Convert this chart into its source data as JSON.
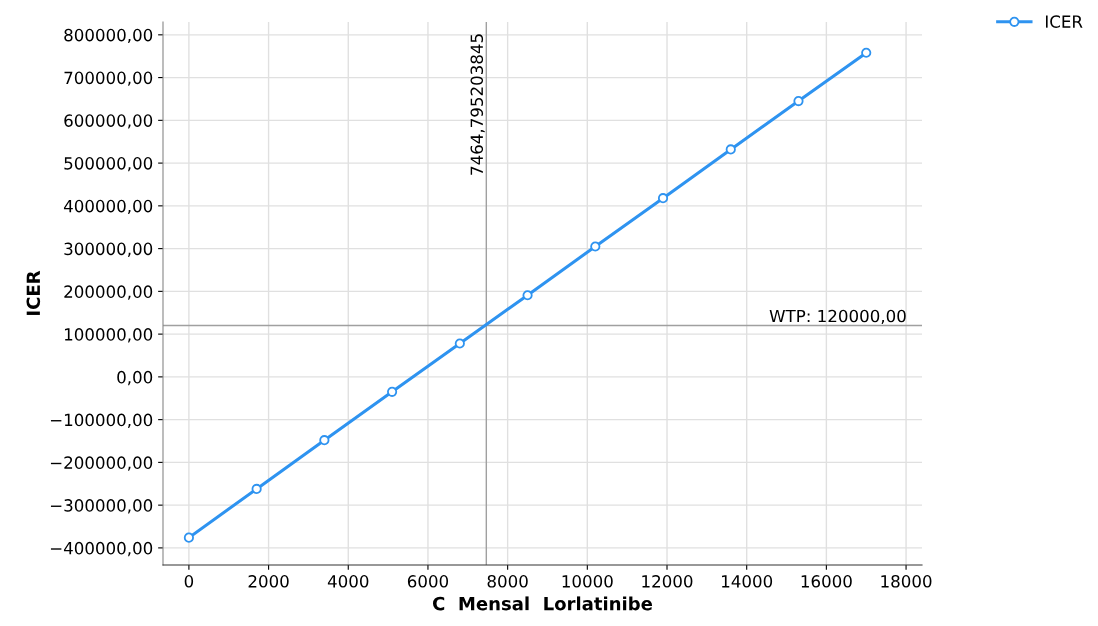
{
  "chart_data": {
    "type": "line",
    "xlabel": "C  Mensal  Lorlatinibe",
    "ylabel": "ICER",
    "x": [
      0,
      1700,
      3400,
      5100,
      6800,
      8500,
      10200,
      11900,
      13600,
      15300,
      17000
    ],
    "series": [
      {
        "name": "ICER",
        "color": "#2e93f0",
        "values": [
          -376000,
          -262000,
          -148000,
          -35000,
          78000,
          191000,
          305000,
          418000,
          532000,
          645000,
          758000
        ]
      }
    ],
    "xlim": [
      -650,
      18400
    ],
    "xticks": [
      0,
      2000,
      4000,
      6000,
      8000,
      10000,
      12000,
      14000,
      16000,
      18000
    ],
    "ylim": [
      -440000,
      830000
    ],
    "yticks": [
      {
        "value": -400000,
        "label": "−400000,00"
      },
      {
        "value": -300000,
        "label": "−300000,00"
      },
      {
        "value": -200000,
        "label": "−200000,00"
      },
      {
        "value": -100000,
        "label": "−100000,00"
      },
      {
        "value": 0,
        "label": "0,00"
      },
      {
        "value": 100000,
        "label": "100000,00"
      },
      {
        "value": 200000,
        "label": "200000,00"
      },
      {
        "value": 300000,
        "label": "300000,00"
      },
      {
        "value": 400000,
        "label": "400000,00"
      },
      {
        "value": 500000,
        "label": "500000,00"
      },
      {
        "value": 600000,
        "label": "600000,00"
      },
      {
        "value": 700000,
        "label": "700000,00"
      },
      {
        "value": 800000,
        "label": "800000,00"
      }
    ],
    "ref_lines": [
      {
        "axis": "x",
        "value": 7464.795203845,
        "label": "7464,795203845",
        "color": "#a0a0a0"
      },
      {
        "axis": "y",
        "value": 120000,
        "label": "WTP: 120000,00",
        "color": "#a0a0a0"
      }
    ],
    "grid": true,
    "legend": "top right",
    "marker": "circle",
    "line_style": "solid"
  }
}
